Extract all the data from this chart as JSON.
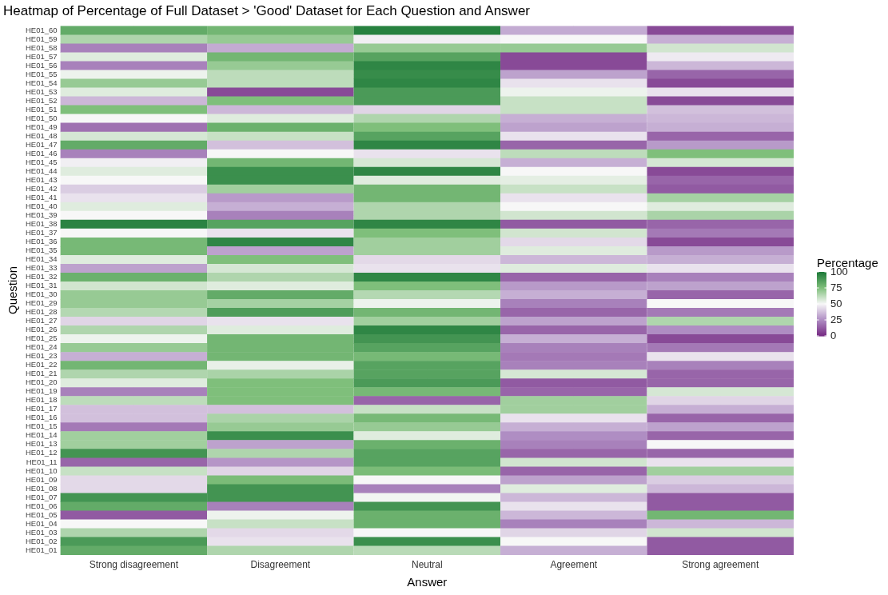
{
  "chart_data": {
    "type": "heatmap",
    "title": "Heatmap of Percentage of Full Dataset > 'Good' Dataset for Each Question and Answer",
    "xlabel": "Answer",
    "ylabel": "Question",
    "clabel": "Percentage",
    "grid": true,
    "categories": [
      "Strong disagreement",
      "Disagreement",
      "Neutral",
      "Agreement",
      "Strong agreement"
    ],
    "y_categories": [
      "HE01_60",
      "HE01_59",
      "HE01_58",
      "HE01_57",
      "HE01_56",
      "HE01_55",
      "HE01_54",
      "HE01_53",
      "HE01_52",
      "HE01_51",
      "HE01_50",
      "HE01_49",
      "HE01_48",
      "HE01_47",
      "HE01_46",
      "HE01_45",
      "HE01_44",
      "HE01_43",
      "HE01_42",
      "HE01_41",
      "HE01_40",
      "HE01_39",
      "HE01_38",
      "HE01_37",
      "HE01_36",
      "HE01_35",
      "HE01_34",
      "HE01_33",
      "HE01_32",
      "HE01_31",
      "HE01_30",
      "HE01_29",
      "HE01_28",
      "HE01_27",
      "HE01_26",
      "HE01_25",
      "HE01_24",
      "HE01_23",
      "HE01_22",
      "HE01_21",
      "HE01_20",
      "HE01_19",
      "HE01_18",
      "HE01_17",
      "HE01_16",
      "HE01_15",
      "HE01_14",
      "HE01_13",
      "HE01_12",
      "HE01_11",
      "HE01_10",
      "HE01_09",
      "HE01_08",
      "HE01_07",
      "HE01_06",
      "HE01_05",
      "HE01_04",
      "HE01_03",
      "HE01_02",
      "HE01_01"
    ],
    "cells": [
      [
        82,
        78,
        97,
        32,
        8
      ],
      [
        65,
        70,
        48,
        50,
        33
      ],
      [
        22,
        32,
        70,
        70,
        58
      ],
      [
        55,
        78,
        85,
        8,
        47
      ],
      [
        22,
        70,
        95,
        8,
        35
      ],
      [
        52,
        62,
        93,
        30,
        15
      ],
      [
        70,
        62,
        95,
        45,
        8
      ],
      [
        55,
        8,
        88,
        52,
        45
      ],
      [
        35,
        75,
        88,
        60,
        8
      ],
      [
        75,
        35,
        42,
        60,
        37
      ],
      [
        50,
        55,
        65,
        33,
        35
      ],
      [
        18,
        80,
        75,
        30,
        33
      ],
      [
        57,
        60,
        85,
        45,
        15
      ],
      [
        82,
        37,
        95,
        15,
        28
      ],
      [
        22,
        50,
        45,
        62,
        75
      ],
      [
        48,
        78,
        57,
        33,
        57
      ],
      [
        55,
        92,
        95,
        50,
        8
      ],
      [
        50,
        92,
        55,
        54,
        15
      ],
      [
        40,
        68,
        78,
        60,
        12
      ],
      [
        45,
        28,
        78,
        45,
        67
      ],
      [
        55,
        33,
        65,
        50,
        55
      ],
      [
        50,
        22,
        65,
        58,
        66
      ],
      [
        96,
        85,
        95,
        12,
        15
      ],
      [
        50,
        45,
        75,
        58,
        20
      ],
      [
        77,
        95,
        68,
        43,
        8
      ],
      [
        77,
        30,
        68,
        55,
        28
      ],
      [
        55,
        75,
        43,
        35,
        33
      ],
      [
        30,
        57,
        45,
        55,
        45
      ],
      [
        80,
        65,
        95,
        15,
        22
      ],
      [
        58,
        55,
        75,
        28,
        30
      ],
      [
        70,
        82,
        64,
        33,
        15
      ],
      [
        70,
        67,
        52,
        22,
        50
      ],
      [
        64,
        87,
        78,
        15,
        20
      ],
      [
        42,
        45,
        68,
        30,
        65
      ],
      [
        65,
        55,
        95,
        15,
        25
      ],
      [
        52,
        78,
        90,
        33,
        8
      ],
      [
        70,
        78,
        85,
        22,
        20
      ],
      [
        33,
        78,
        77,
        20,
        45
      ],
      [
        78,
        53,
        85,
        22,
        22
      ],
      [
        65,
        66,
        85,
        57,
        15
      ],
      [
        55,
        75,
        88,
        12,
        15
      ],
      [
        22,
        75,
        77,
        15,
        57
      ],
      [
        62,
        75,
        15,
        68,
        42
      ],
      [
        37,
        37,
        60,
        68,
        33
      ],
      [
        37,
        66,
        77,
        45,
        15
      ],
      [
        20,
        70,
        70,
        33,
        30
      ],
      [
        68,
        92,
        55,
        25,
        15
      ],
      [
        68,
        30,
        80,
        22,
        50
      ],
      [
        90,
        65,
        85,
        15,
        15
      ],
      [
        15,
        27,
        85,
        58,
        45
      ],
      [
        60,
        42,
        76,
        15,
        68
      ],
      [
        43,
        76,
        50,
        30,
        40
      ],
      [
        43,
        90,
        22,
        55,
        35
      ],
      [
        90,
        90,
        51,
        35,
        12
      ],
      [
        82,
        22,
        90,
        45,
        12
      ],
      [
        12,
        52,
        80,
        35,
        78
      ],
      [
        50,
        60,
        80,
        22,
        35
      ],
      [
        65,
        43,
        50,
        42,
        58
      ],
      [
        88,
        45,
        92,
        50,
        12
      ],
      [
        82,
        65,
        63,
        33,
        12
      ]
    ],
    "clim": [
      0,
      100
    ],
    "cticks": [
      0,
      25,
      50,
      75,
      100
    ]
  }
}
